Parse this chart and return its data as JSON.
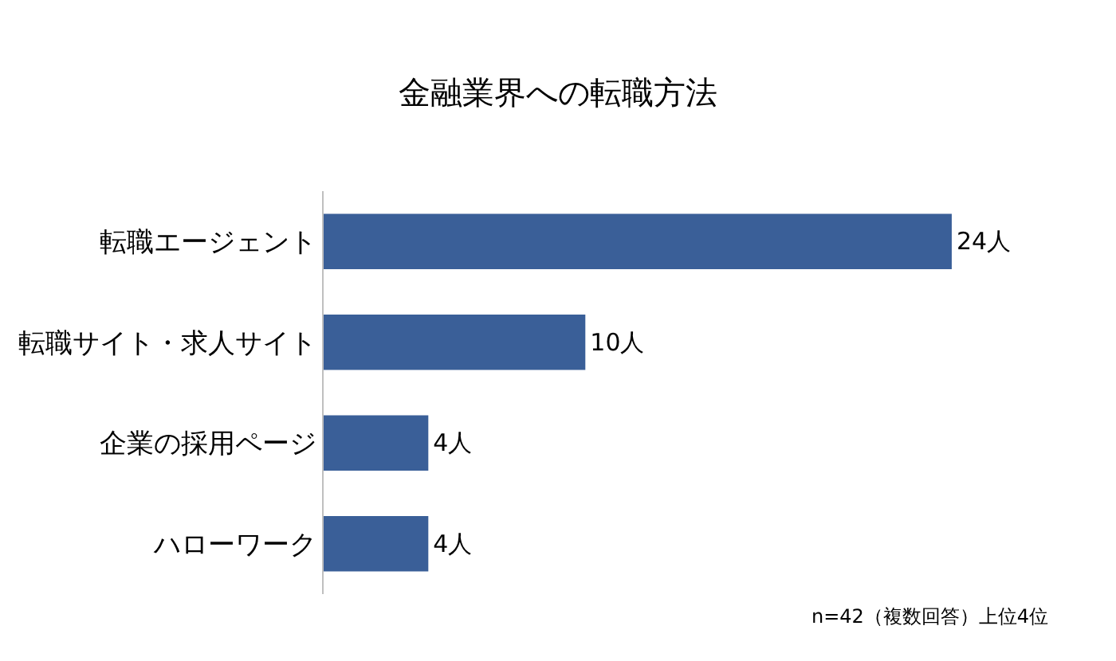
{
  "chart_data": {
    "type": "bar",
    "orientation": "horizontal",
    "title": "金融業界への転職方法",
    "categories": [
      "転職エージェント",
      "転職サイト・求人サイト",
      "企業の採用ページ",
      "ハローワーク"
    ],
    "values": [
      24,
      10,
      4,
      4
    ],
    "color": "#3a5f98",
    "value_labels": [
      "24人",
      "10人",
      "4人",
      "4人"
    ],
    "annotations": [
      "n=42（複数回答）上位4位"
    ]
  }
}
